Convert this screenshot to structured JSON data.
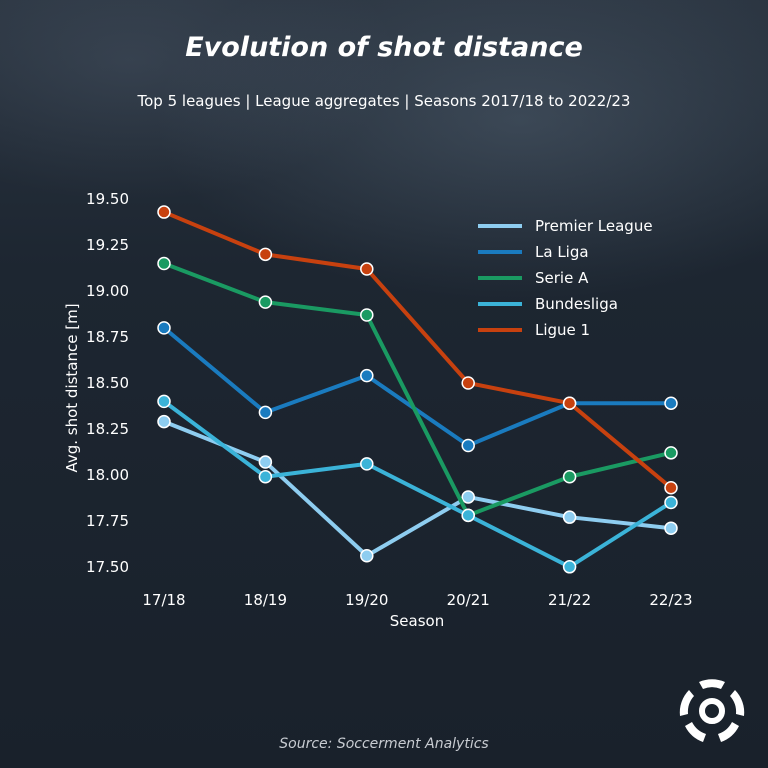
{
  "header": {
    "title": "Evolution of shot distance",
    "subtitle": "Top 5 leagues | League aggregates | Seasons 2017/18 to 2022/23"
  },
  "footer": {
    "source": "Source: Soccerment Analytics"
  },
  "logo": {
    "icon": "soccerment-ball-logo-icon"
  },
  "chart_data": {
    "type": "line",
    "xlabel": "Season",
    "ylabel": "Avg. shot distance [m]",
    "categories": [
      "17/18",
      "18/19",
      "19/20",
      "20/21",
      "21/22",
      "22/23"
    ],
    "ylim": [
      17.45,
      19.55
    ],
    "yticks": [
      "17.50",
      "17.75",
      "18.00",
      "18.25",
      "18.50",
      "18.75",
      "19.00",
      "19.25",
      "19.50"
    ],
    "grid": false,
    "legend_position": "top-right",
    "series": [
      {
        "name": "Premier League",
        "color": "#8ecdf0",
        "values": [
          18.29,
          18.07,
          17.56,
          17.88,
          17.77,
          17.71
        ]
      },
      {
        "name": "La Liga",
        "color": "#1a7bbf",
        "values": [
          18.8,
          18.34,
          18.54,
          18.16,
          18.39,
          18.39
        ]
      },
      {
        "name": "Serie A",
        "color": "#1a9a62",
        "values": [
          19.15,
          18.94,
          18.87,
          17.78,
          17.99,
          18.12
        ]
      },
      {
        "name": "Bundesliga",
        "color": "#3bb3d8",
        "values": [
          18.4,
          17.99,
          18.06,
          17.78,
          17.5,
          17.85
        ]
      },
      {
        "name": "Ligue 1",
        "color": "#c7410f",
        "values": [
          19.43,
          19.2,
          19.12,
          18.5,
          18.39,
          17.93
        ]
      }
    ]
  }
}
